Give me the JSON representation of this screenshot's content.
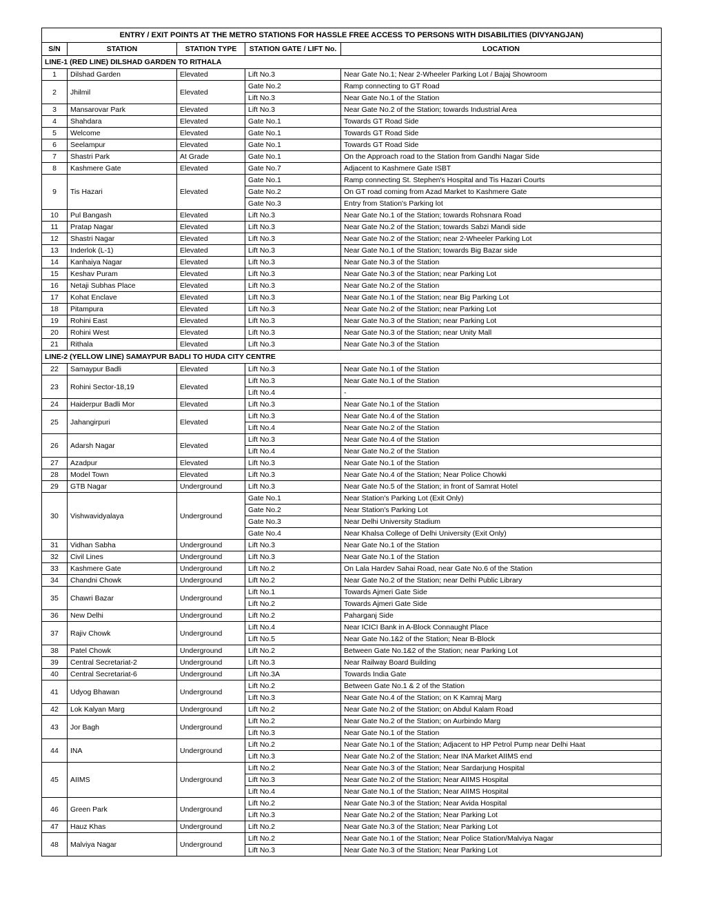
{
  "title": "ENTRY / EXIT POINTS AT THE METRO STATIONS FOR HASSLE FREE ACCESS TO PERSONS WITH DISABILITIES (DIVYANGJAN)",
  "headers": {
    "sn": "S/N",
    "station": "STATION",
    "type": "STATION TYPE",
    "gate": "STATION GATE / LIFT No.",
    "loc": "LOCATION"
  },
  "sections": [
    {
      "label": "LINE-1 (RED LINE) DILSHAD GARDEN TO RITHALA",
      "rows": [
        {
          "sn": "1",
          "station": "Dilshad Garden",
          "type": "Elevated",
          "entries": [
            [
              "Lift No.3",
              "Near Gate No.1; Near 2-Wheeler Parking Lot / Bajaj Showroom"
            ]
          ]
        },
        {
          "sn": "2",
          "station": "Jhilmil",
          "type": "Elevated",
          "entries": [
            [
              "Gate No.2",
              "Ramp connecting to GT Road"
            ],
            [
              "Lift No.3",
              "Near Gate No.1 of the Station"
            ]
          ]
        },
        {
          "sn": "3",
          "station": "Mansarovar Park",
          "type": "Elevated",
          "entries": [
            [
              "Lift No.3",
              "Near Gate No.2 of the Station; towards Industrial Area"
            ]
          ]
        },
        {
          "sn": "4",
          "station": "Shahdara",
          "type": "Elevated",
          "entries": [
            [
              "Gate No.1",
              "Towards GT Road Side"
            ]
          ]
        },
        {
          "sn": "5",
          "station": "Welcome",
          "type": "Elevated",
          "entries": [
            [
              "Gate No.1",
              "Towards GT Road Side"
            ]
          ]
        },
        {
          "sn": "6",
          "station": "Seelampur",
          "type": "Elevated",
          "entries": [
            [
              "Gate No.1",
              "Towards GT Road Side"
            ]
          ]
        },
        {
          "sn": "7",
          "station": "Shastri Park",
          "type": "At Grade",
          "entries": [
            [
              "Gate No.1",
              "On the Approach road to the Station from Gandhi Nagar Side"
            ]
          ]
        },
        {
          "sn": "8",
          "station": "Kashmere Gate",
          "type": "Elevated",
          "entries": [
            [
              "Gate No.7",
              "Adjacent to Kashmere Gate ISBT"
            ]
          ]
        },
        {
          "sn": "9",
          "station": "Tis Hazari",
          "type": "Elevated",
          "entries": [
            [
              "Gate No.1",
              "Ramp connecting St. Stephen's Hospital and Tis Hazari Courts"
            ],
            [
              "Gate No.2",
              "On GT road coming from Azad Market to Kashmere Gate"
            ],
            [
              "Gate No.3",
              "Entry from Station's Parking lot"
            ]
          ]
        },
        {
          "sn": "10",
          "station": "Pul Bangash",
          "type": "Elevated",
          "entries": [
            [
              "Lift No.3",
              "Near Gate No.1 of the Station; towards Rohsnara Road"
            ]
          ]
        },
        {
          "sn": "11",
          "station": "Pratap Nagar",
          "type": "Elevated",
          "entries": [
            [
              "Lift No.3",
              "Near Gate No.2 of the Station; towards Sabzi Mandi side"
            ]
          ]
        },
        {
          "sn": "12",
          "station": "Shastri Nagar",
          "type": "Elevated",
          "entries": [
            [
              "Lift No.3",
              "Near Gate No.2 of the Station; near 2-Wheeler Parking Lot"
            ]
          ]
        },
        {
          "sn": "13",
          "station": "Inderlok (L-1)",
          "type": "Elevated",
          "entries": [
            [
              "Lift No.3",
              "Near Gate No.1 of the Station; towards Big Bazar side"
            ]
          ]
        },
        {
          "sn": "14",
          "station": "Kanhaiya Nagar",
          "type": "Elevated",
          "entries": [
            [
              "Lift No.3",
              "Near Gate No.3 of the Station"
            ]
          ]
        },
        {
          "sn": "15",
          "station": "Keshav Puram",
          "type": "Elevated",
          "entries": [
            [
              "Lift No.3",
              "Near Gate No.3 of the Station; near Parking Lot"
            ]
          ]
        },
        {
          "sn": "16",
          "station": "Netaji Subhas Place",
          "type": "Elevated",
          "entries": [
            [
              "Lift No.3",
              "Near Gate No.2 of the Station"
            ]
          ]
        },
        {
          "sn": "17",
          "station": "Kohat Enclave",
          "type": "Elevated",
          "entries": [
            [
              "Lift No.3",
              "Near Gate No.1 of the Station; near Big Parking Lot"
            ]
          ]
        },
        {
          "sn": "18",
          "station": "Pitampura",
          "type": "Elevated",
          "entries": [
            [
              "Lift No.3",
              "Near Gate No.2 of the Station; near Parking Lot"
            ]
          ]
        },
        {
          "sn": "19",
          "station": "Rohini East",
          "type": "Elevated",
          "entries": [
            [
              "Lift No.3",
              "Near Gate No.3 of the Station; near Parking Lot"
            ]
          ]
        },
        {
          "sn": "20",
          "station": "Rohini West",
          "type": "Elevated",
          "entries": [
            [
              "Lift No.3",
              "Near Gate No.3 of the Station; near Unity Mall"
            ]
          ]
        },
        {
          "sn": "21",
          "station": "Rithala",
          "type": "Elevated",
          "entries": [
            [
              "Lift No.3",
              "Near Gate No.3 of the Station"
            ]
          ]
        }
      ]
    },
    {
      "label": "LINE-2 (YELLOW LINE) SAMAYPUR BADLI TO HUDA CITY CENTRE",
      "rows": [
        {
          "sn": "22",
          "station": "Samaypur Badli",
          "type": "Elevated",
          "entries": [
            [
              "Lift No.3",
              "Near Gate No.1 of the Station"
            ]
          ]
        },
        {
          "sn": "23",
          "station": "Rohini Sector-18,19",
          "type": "Elevated",
          "entries": [
            [
              "Lift No.3",
              "Near Gate No.1 of the Station"
            ],
            [
              "Lift No.4",
              "-"
            ]
          ]
        },
        {
          "sn": "24",
          "station": "Haiderpur Badli Mor",
          "type": "Elevated",
          "entries": [
            [
              "Lift No.3",
              "Near Gate No.1 of the Station"
            ]
          ]
        },
        {
          "sn": "25",
          "station": "Jahangirpuri",
          "type": "Elevated",
          "entries": [
            [
              "Lift No.3",
              "Near Gate No.4 of the Station"
            ],
            [
              "Lift No.4",
              "Near Gate No.2 of the Station"
            ]
          ]
        },
        {
          "sn": "26",
          "station": "Adarsh Nagar",
          "type": "Elevated",
          "entries": [
            [
              "Lift No.3",
              "Near Gate No.4 of the Station"
            ],
            [
              "Lift No.4",
              "Near Gate No.2 of the Station"
            ]
          ]
        },
        {
          "sn": "27",
          "station": "Azadpur",
          "type": "Elevated",
          "entries": [
            [
              "Lift No.3",
              "Near Gate No.1 of the Station"
            ]
          ]
        },
        {
          "sn": "28",
          "station": "Model Town",
          "type": "Elevated",
          "entries": [
            [
              "Lift No.3",
              "Near Gate No.4 of the Station; Near Police Chowki"
            ]
          ]
        },
        {
          "sn": "29",
          "station": "GTB Nagar",
          "type": "Underground",
          "entries": [
            [
              "Lift No.3",
              "Near Gate No.5 of the Station; in front of Samrat Hotel"
            ]
          ]
        },
        {
          "sn": "30",
          "station": "Vishwavidyalaya",
          "type": "Underground",
          "entries": [
            [
              "Gate No.1",
              "Near Station's Parking Lot (Exit Only)"
            ],
            [
              "Gate No.2",
              "Near Station's Parking Lot"
            ],
            [
              "Gate No.3",
              "Near Delhi University Stadium"
            ],
            [
              "Gate No.4",
              "Near Khalsa College of Delhi University (Exit Only)"
            ]
          ]
        },
        {
          "sn": "31",
          "station": "Vidhan Sabha",
          "type": "Underground",
          "entries": [
            [
              "Lift No.3",
              "Near Gate No.1 of the Station"
            ]
          ]
        },
        {
          "sn": "32",
          "station": "Civil Lines",
          "type": "Underground",
          "entries": [
            [
              "Lift No.3",
              "Near Gate No.1 of the Station"
            ]
          ]
        },
        {
          "sn": "33",
          "station": "Kashmere Gate",
          "type": "Underground",
          "entries": [
            [
              "Lift No.2",
              "On Lala Hardev Sahai Road, near Gate No.6 of the Station"
            ]
          ]
        },
        {
          "sn": "34",
          "station": "Chandni Chowk",
          "type": "Underground",
          "entries": [
            [
              "Lift No.2",
              "Near Gate No.2 of the Station; near Delhi Public Library"
            ]
          ]
        },
        {
          "sn": "35",
          "station": "Chawri Bazar",
          "type": "Underground",
          "entries": [
            [
              "Lift No.1",
              "Towards Ajmeri Gate Side"
            ],
            [
              "Lift No.2",
              "Towards Ajmeri Gate Side"
            ]
          ]
        },
        {
          "sn": "36",
          "station": "New Delhi",
          "type": "Underground",
          "entries": [
            [
              "Lift No.2",
              "Paharganj Side"
            ]
          ]
        },
        {
          "sn": "37",
          "station": "Rajiv Chowk",
          "type": "Underground",
          "entries": [
            [
              "Lift No.4",
              "Near ICICI Bank in A-Block Connaught Place"
            ],
            [
              "Lift No.5",
              "Near Gate No.1&2 of the Station; Near B-Block"
            ]
          ]
        },
        {
          "sn": "38",
          "station": "Patel Chowk",
          "type": "Underground",
          "entries": [
            [
              "Lift No.2",
              "Between Gate No.1&2 of the Station; near Parking Lot"
            ]
          ]
        },
        {
          "sn": "39",
          "station": "Central Secretariat-2",
          "type": "Underground",
          "entries": [
            [
              "Lift No.3",
              "Near Railway Board Building"
            ]
          ]
        },
        {
          "sn": "40",
          "station": "Central Secretariat-6",
          "type": "Underground",
          "entries": [
            [
              "Lift No.3A",
              "Towards India Gate"
            ]
          ]
        },
        {
          "sn": "41",
          "station": "Udyog Bhawan",
          "type": "Underground",
          "entries": [
            [
              "Lift No.2",
              "Between Gate No.1 & 2 of the Station"
            ],
            [
              "Lift No.3",
              "Near Gate No.4 of the Station; on K Kamraj Marg"
            ]
          ]
        },
        {
          "sn": "42",
          "station": "Lok Kalyan Marg",
          "type": "Underground",
          "entries": [
            [
              "Lift No.2",
              "Near Gate No.2 of the Station; on Abdul Kalam Road"
            ]
          ]
        },
        {
          "sn": "43",
          "station": "Jor Bagh",
          "type": "Underground",
          "entries": [
            [
              "Lift No.2",
              "Near Gate No.2 of the Station; on Aurbindo Marg"
            ],
            [
              "Lift No.3",
              "Near Gate No.1 of the Station"
            ]
          ]
        },
        {
          "sn": "44",
          "station": "INA",
          "type": "Underground",
          "entries": [
            [
              "Lift No.2",
              "Near Gate No.1 of the Station; Adjacent to HP Petrol Pump near Delhi Haat"
            ],
            [
              "Lift No.3",
              "Near Gate No.2 of the Station; Near INA Market AIIMS end"
            ]
          ]
        },
        {
          "sn": "45",
          "station": "AIIMS",
          "type": "Underground",
          "entries": [
            [
              "Lift No.2",
              "Near Gate No.3 of the Station; Near Sardarjung Hospital"
            ],
            [
              "Lift No.3",
              "Near Gate No.2 of the Station; Near AIIMS Hospital"
            ],
            [
              "Lift No.4",
              "Near Gate No.1 of the Station; Near AIIMS Hospital"
            ]
          ]
        },
        {
          "sn": "46",
          "station": "Green Park",
          "type": "Underground",
          "entries": [
            [
              "Lift No.2",
              "Near Gate No.3 of the Station; Near Avida Hospital"
            ],
            [
              "Lift No.3",
              "Near Gate No.2 of the Station; Near Parking Lot"
            ]
          ]
        },
        {
          "sn": "47",
          "station": "Hauz Khas",
          "type": "Underground",
          "entries": [
            [
              "Lift No.2",
              "Near Gate No.3 of the Station; Near Parking Lot"
            ]
          ]
        },
        {
          "sn": "48",
          "station": "Malviya Nagar",
          "type": "Underground",
          "entries": [
            [
              "Lift No.2",
              "Near Gate No.1 of the Station; Near Police Station/Malviya Nagar"
            ],
            [
              "Lift No.3",
              "Near Gate No.3 of the Station; Near Parking Lot"
            ]
          ]
        }
      ]
    }
  ]
}
